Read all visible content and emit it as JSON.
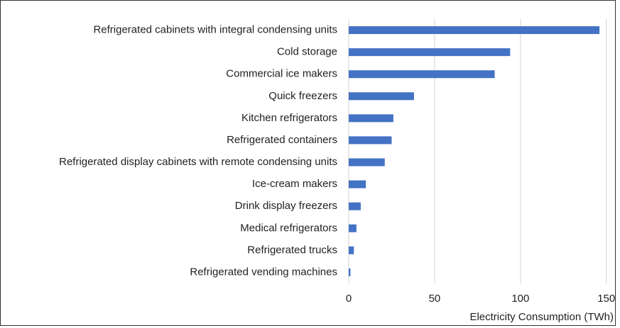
{
  "chart_data": {
    "type": "hbar",
    "categories": [
      "Refrigerated cabinets with integral condensing units",
      "Cold storage",
      "Commercial ice makers",
      "Quick freezers",
      "Kitchen refrigerators",
      "Refrigerated containers",
      "Refrigerated display cabinets with remote condensing units",
      "Ice-cream makers",
      "Drink display freezers",
      "Medical refrigerators",
      "Refrigerated trucks",
      "Refrigerated vending machines"
    ],
    "values": [
      146,
      94,
      85,
      38,
      26,
      25,
      21,
      10,
      7,
      4.5,
      3,
      1
    ],
    "color": "#4472c4",
    "xlabel": "Electricity Consumption (TWh)",
    "xlim": [
      0,
      153
    ],
    "xticks": [
      0,
      50,
      100,
      150
    ],
    "grid": true
  }
}
